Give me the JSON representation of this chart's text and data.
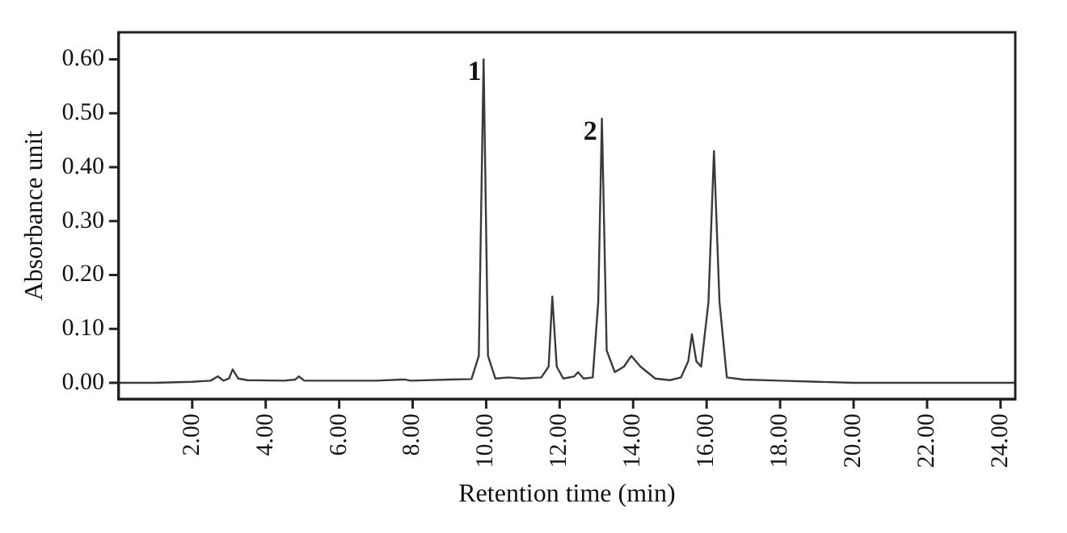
{
  "chart_data": {
    "type": "line",
    "xlabel": "Retention time (min)",
    "ylabel": "Absorbance unit",
    "x": [
      0,
      1.0,
      2.0,
      2.5,
      2.7,
      2.85,
      3.0,
      3.1,
      3.25,
      3.5,
      4.5,
      4.8,
      4.9,
      5.05,
      6.0,
      7.0,
      7.7,
      7.8,
      7.95,
      9.0,
      9.6,
      9.8,
      9.93,
      10.05,
      10.25,
      10.6,
      11.0,
      11.5,
      11.7,
      11.8,
      11.92,
      12.1,
      12.4,
      12.5,
      12.65,
      12.9,
      13.05,
      13.15,
      13.28,
      13.5,
      13.75,
      13.95,
      14.2,
      14.6,
      15.0,
      15.3,
      15.5,
      15.6,
      15.72,
      15.85,
      16.05,
      16.2,
      16.35,
      16.55,
      17.0,
      18.0,
      19.0,
      20.0,
      22.0,
      24.4
    ],
    "values": [
      0.0,
      0.0,
      0.002,
      0.004,
      0.012,
      0.004,
      0.008,
      0.025,
      0.008,
      0.005,
      0.004,
      0.006,
      0.012,
      0.004,
      0.004,
      0.004,
      0.006,
      0.006,
      0.004,
      0.006,
      0.007,
      0.05,
      0.6,
      0.05,
      0.008,
      0.01,
      0.008,
      0.01,
      0.03,
      0.16,
      0.03,
      0.008,
      0.012,
      0.02,
      0.008,
      0.01,
      0.15,
      0.49,
      0.06,
      0.02,
      0.03,
      0.05,
      0.03,
      0.008,
      0.005,
      0.01,
      0.04,
      0.09,
      0.04,
      0.03,
      0.15,
      0.43,
      0.15,
      0.01,
      0.006,
      0.004,
      0.002,
      0.0,
      0.0,
      0.0
    ],
    "color": "#3a3a3a",
    "xlim": [
      0,
      24.4
    ],
    "xticks": [
      {
        "value": 2,
        "label": "2.00"
      },
      {
        "value": 4,
        "label": "4.00"
      },
      {
        "value": 6,
        "label": "6.00"
      },
      {
        "value": 8,
        "label": "8.00"
      },
      {
        "value": 10,
        "label": "10.00"
      },
      {
        "value": 12,
        "label": "12.00"
      },
      {
        "value": 14,
        "label": "14.00"
      },
      {
        "value": 16,
        "label": "16.00"
      },
      {
        "value": 18,
        "label": "18.00"
      },
      {
        "value": 20,
        "label": "20.00"
      },
      {
        "value": 22,
        "label": "22.00"
      },
      {
        "value": 24,
        "label": "24.00"
      }
    ],
    "ylim": [
      -0.03,
      0.65
    ],
    "yticks": [
      {
        "value": 0,
        "label": "0.00"
      },
      {
        "value": 0.1,
        "label": "0.10"
      },
      {
        "value": 0.2,
        "label": "0.20"
      },
      {
        "value": 0.3,
        "label": "0.30"
      },
      {
        "value": 0.4,
        "label": "0.40"
      },
      {
        "value": 0.5,
        "label": "0.50"
      },
      {
        "value": 0.6,
        "label": "0.60"
      }
    ],
    "grid": false,
    "legend": false,
    "marker": "none",
    "line_style": "solid",
    "annotations": [
      {
        "text": "1",
        "x": 10.0,
        "y": 0.6
      },
      {
        "text": "2",
        "x": 13.15,
        "y": 0.49
      }
    ]
  }
}
